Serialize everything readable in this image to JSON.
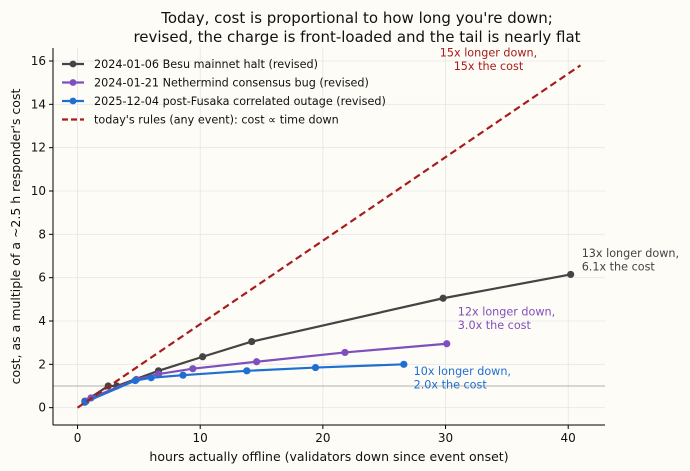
{
  "chart_data": {
    "type": "line",
    "title": [
      "Today, cost is proportional to how long you're down;",
      "revised, the charge is front-loaded and the tail is nearly flat"
    ],
    "xlabel": "hours actually offline (validators down since event onset)",
    "ylabel": "cost, as a multiple of a ~2.5 h responder's cost",
    "xlim": [
      -2,
      43
    ],
    "ylim": [
      -0.8,
      16.6
    ],
    "xticks": [
      0,
      10,
      20,
      30,
      40
    ],
    "yticks": [
      0,
      2,
      4,
      6,
      8,
      10,
      12,
      14,
      16
    ],
    "grid": true,
    "legend_position": "top-left",
    "reference_line": {
      "y": 1,
      "color": "#b0b0b0"
    },
    "series": [
      {
        "name": "2024-01-06 Besu mainnet halt (revised)",
        "color": "#444444",
        "style": "solid-markers",
        "x": [
          0.6,
          2.5,
          3.2,
          6.6,
          10.2,
          14.2,
          29.8,
          40.2
        ],
        "y": [
          0.3,
          1.0,
          1.0,
          1.7,
          2.35,
          3.05,
          5.05,
          6.15
        ]
      },
      {
        "name": "2024-01-21 Nethermind consensus bug (revised)",
        "color": "#7e4fbe",
        "style": "solid-markers",
        "x": [
          0.7,
          1.1,
          4.8,
          6.6,
          9.4,
          14.6,
          21.8,
          30.1
        ],
        "y": [
          0.3,
          0.45,
          1.3,
          1.55,
          1.8,
          2.12,
          2.55,
          2.95
        ]
      },
      {
        "name": "2025-12-04 post-Fusaka correlated outage (revised)",
        "color": "#1f6fd1",
        "style": "solid-markers",
        "x": [
          0.6,
          4.7,
          6.0,
          8.6,
          13.8,
          19.4,
          26.6
        ],
        "y": [
          0.25,
          1.25,
          1.38,
          1.5,
          1.7,
          1.85,
          2.0
        ]
      },
      {
        "name": "today's rules (any event): cost ∝ time down",
        "color": "#a51d1d",
        "style": "dashed",
        "x": [
          0,
          41
        ],
        "y": [
          0,
          15.8
        ]
      }
    ],
    "annotations": [
      {
        "lines": [
          "15x longer down,",
          "15x the cost"
        ],
        "x": 33.5,
        "y": 16.2,
        "color": "#a51d1d",
        "anchor": "middle"
      },
      {
        "lines": [
          "13x longer down,",
          "6.1x the cost"
        ],
        "x": 41.1,
        "y": 6.95,
        "color": "#444444",
        "anchor": "start"
      },
      {
        "lines": [
          "12x longer down,",
          "3.0x the cost"
        ],
        "x": 31.0,
        "y": 4.25,
        "color": "#7e4fbe",
        "anchor": "start"
      },
      {
        "lines": [
          "10x longer down,",
          "2.0x the cost"
        ],
        "x": 27.4,
        "y": 1.5,
        "color": "#1f6fd1",
        "anchor": "start"
      }
    ]
  }
}
